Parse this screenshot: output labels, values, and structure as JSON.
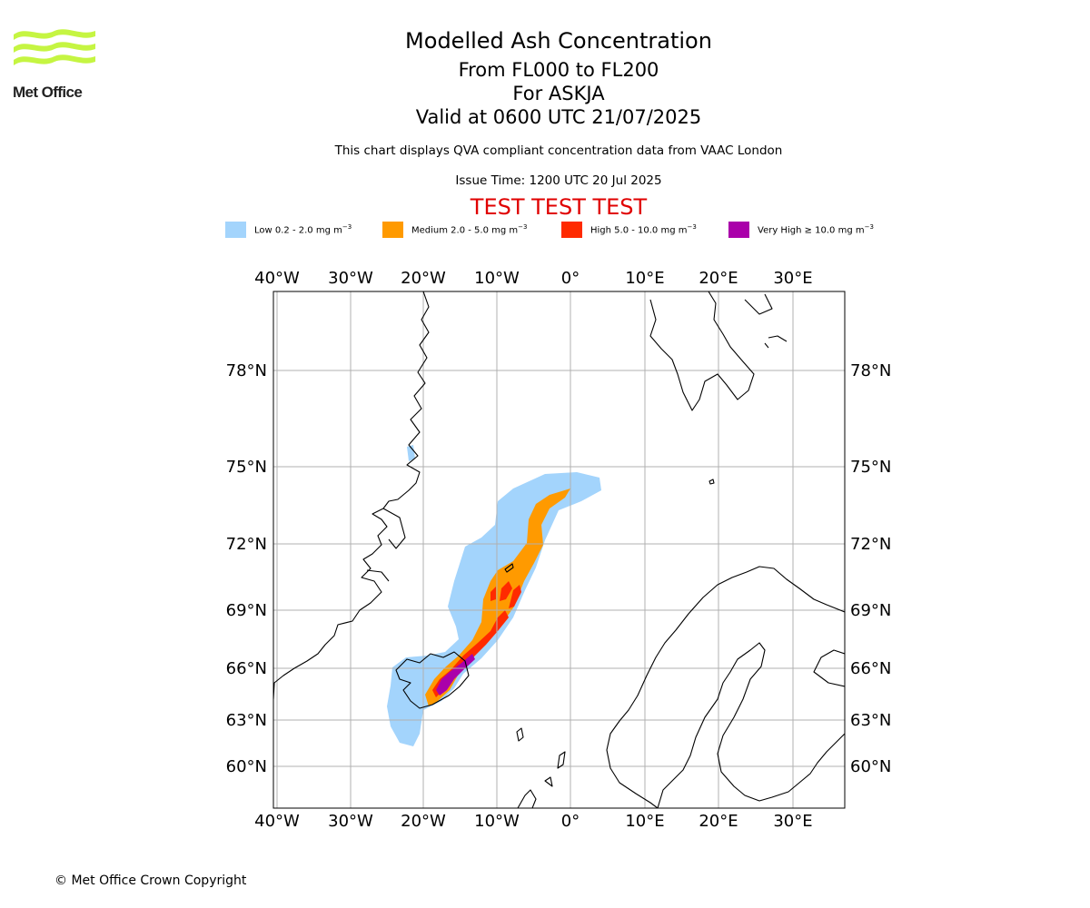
{
  "logo": {
    "text": "Met Office"
  },
  "titles": {
    "line1": "Modelled Ash Concentration",
    "line2": "From FL000 to FL200",
    "line3": "For ASKJA",
    "line4": "Valid at 0600 UTC 21/07/2025",
    "compliance": "This chart displays QVA compliant concentration data from VAAC London",
    "issue_time": "Issue Time: 1200 UTC 20 Jul 2025",
    "test_banner": "TEST TEST TEST"
  },
  "legend": [
    {
      "label": "Low 0.2 - 2.0 mg m",
      "sup": "−3",
      "color": "#a3d4fc"
    },
    {
      "label": "Medium 2.0 - 5.0 mg m",
      "sup": "−3",
      "color": "#ff9a00"
    },
    {
      "label": "High 5.0 - 10.0 mg m",
      "sup": "−3",
      "color": "#ff2a00"
    },
    {
      "label": "Very High  ≥  10.0 mg m",
      "sup": "−3",
      "color": "#aa00aa"
    }
  ],
  "map": {
    "lon_labels": [
      "40°W",
      "30°W",
      "20°W",
      "10°W",
      "0°",
      "10°E",
      "20°E",
      "30°E"
    ],
    "lat_labels": [
      "78°N",
      "75°N",
      "72°N",
      "69°N",
      "66°N",
      "63°N",
      "60°N"
    ]
  },
  "footer": {
    "copyright": "© Met Office Crown Copyright"
  }
}
